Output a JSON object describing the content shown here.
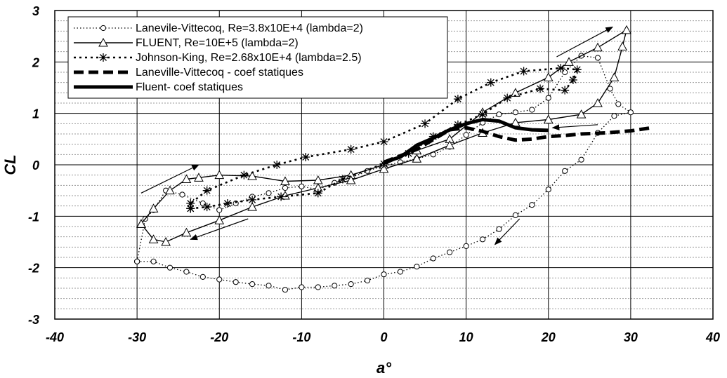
{
  "chart_data": {
    "type": "line",
    "xlabel": "a°",
    "ylabel": "CL",
    "xlim": [
      -40,
      40
    ],
    "ylim": [
      -3,
      3
    ],
    "x_ticks": [
      "-40",
      "-30",
      "-20",
      "-10",
      "0",
      "10",
      "20",
      "30",
      "40"
    ],
    "y_ticks": [
      "3",
      "2",
      "1",
      "0",
      "-1",
      "-2",
      "-3"
    ],
    "grid": "major and minor horizontal, major vertical",
    "legend_position": "top-left",
    "series": [
      {
        "name": "Lanevile-Vittecoq, Re=3.8x10E+4 (lambda=2)",
        "style": "dotted line, circle markers",
        "points": [
          [
            -30,
            -1.88
          ],
          [
            -29,
            -1.05
          ],
          [
            -28,
            -0.88
          ],
          [
            -26.5,
            -0.5
          ],
          [
            -24.5,
            -0.58
          ],
          [
            -22,
            -0.75
          ],
          [
            -20,
            -0.88
          ],
          [
            -18,
            -0.75
          ],
          [
            -16,
            -0.62
          ],
          [
            -14,
            -0.55
          ],
          [
            -12,
            -0.45
          ],
          [
            -10,
            -0.42
          ],
          [
            -8,
            -0.48
          ],
          [
            -6,
            -0.35
          ],
          [
            -4,
            -0.25
          ],
          [
            -2,
            -0.12
          ],
          [
            0,
            -0.02
          ],
          [
            2,
            0.05
          ],
          [
            4,
            0.12
          ],
          [
            6,
            0.2
          ],
          [
            8,
            0.35
          ],
          [
            10,
            0.58
          ],
          [
            12,
            0.82
          ],
          [
            14,
            0.98
          ],
          [
            16,
            1.02
          ],
          [
            18,
            1.07
          ],
          [
            20,
            1.3
          ],
          [
            22,
            1.8
          ],
          [
            24,
            2.12
          ],
          [
            26,
            2.08
          ],
          [
            27.5,
            1.48
          ],
          [
            28.5,
            1.18
          ],
          [
            30,
            1.02
          ],
          [
            28,
            0.95
          ],
          [
            26,
            0.62
          ],
          [
            24,
            0.1
          ],
          [
            22,
            -0.12
          ],
          [
            20,
            -0.48
          ],
          [
            18,
            -0.78
          ],
          [
            16,
            -0.98
          ],
          [
            14,
            -1.25
          ],
          [
            12,
            -1.45
          ],
          [
            10,
            -1.58
          ],
          [
            8,
            -1.7
          ],
          [
            6,
            -1.82
          ],
          [
            4,
            -1.98
          ],
          [
            2,
            -2.08
          ],
          [
            0,
            -2.13
          ],
          [
            -2,
            -2.25
          ],
          [
            -4,
            -2.32
          ],
          [
            -6,
            -2.35
          ],
          [
            -8,
            -2.38
          ],
          [
            -10,
            -2.38
          ],
          [
            -12,
            -2.43
          ],
          [
            -14,
            -2.35
          ],
          [
            -16,
            -2.32
          ],
          [
            -18,
            -2.28
          ],
          [
            -20,
            -2.23
          ],
          [
            -22,
            -2.18
          ],
          [
            -24,
            -2.08
          ],
          [
            -26,
            -2.0
          ],
          [
            -28,
            -1.88
          ],
          [
            -30,
            -1.88
          ]
        ]
      },
      {
        "name": "FLUENT, Re=10E+5 (lambda=2)",
        "style": "thin solid line, triangle markers",
        "points": [
          [
            -29.5,
            -1.15
          ],
          [
            -28,
            -0.85
          ],
          [
            -26,
            -0.5
          ],
          [
            -24,
            -0.28
          ],
          [
            -22.5,
            -0.25
          ],
          [
            -20,
            -0.2
          ],
          [
            -16,
            -0.22
          ],
          [
            -12,
            -0.32
          ],
          [
            -8,
            -0.3
          ],
          [
            -4,
            -0.2
          ],
          [
            0,
            0.0
          ],
          [
            4,
            0.28
          ],
          [
            8,
            0.5
          ],
          [
            12,
            1.02
          ],
          [
            16,
            1.4
          ],
          [
            20,
            1.7
          ],
          [
            22.5,
            2.0
          ],
          [
            26,
            2.28
          ],
          [
            29.5,
            2.62
          ],
          [
            29,
            2.3
          ],
          [
            28,
            1.7
          ],
          [
            26,
            1.2
          ],
          [
            24,
            0.98
          ],
          [
            20,
            0.88
          ],
          [
            16,
            0.82
          ],
          [
            12,
            0.62
          ],
          [
            8,
            0.38
          ],
          [
            4,
            0.12
          ],
          [
            0,
            -0.08
          ],
          [
            -4,
            -0.3
          ],
          [
            -8,
            -0.45
          ],
          [
            -12,
            -0.6
          ],
          [
            -16,
            -0.82
          ],
          [
            -20,
            -1.08
          ],
          [
            -24,
            -1.32
          ],
          [
            -26.5,
            -1.5
          ],
          [
            -28,
            -1.45
          ],
          [
            -29.5,
            -1.15
          ]
        ]
      },
      {
        "name": "Johnson-King, Re=2.68x10E+4 (lambda=2.5)",
        "style": "dotted thick line, asterisk markers",
        "points": [
          [
            -23.5,
            -0.85
          ],
          [
            -21.5,
            -0.82
          ],
          [
            -19,
            -0.75
          ],
          [
            -16,
            -0.68
          ],
          [
            -12.5,
            -0.62
          ],
          [
            -8,
            -0.55
          ],
          [
            -5,
            -0.28
          ],
          [
            0,
            0.02
          ],
          [
            3,
            0.22
          ],
          [
            6,
            0.55
          ],
          [
            9,
            0.78
          ],
          [
            12,
            0.98
          ],
          [
            15,
            1.3
          ],
          [
            19,
            1.48
          ],
          [
            22,
            1.45
          ],
          [
            23,
            1.65
          ],
          [
            23.5,
            1.85
          ],
          [
            21.5,
            1.88
          ],
          [
            17,
            1.82
          ],
          [
            13,
            1.6
          ],
          [
            9,
            1.28
          ],
          [
            5,
            0.8
          ],
          [
            0,
            0.45
          ],
          [
            -4,
            0.3
          ],
          [
            -9.5,
            0.15
          ],
          [
            -13,
            0.0
          ],
          [
            -17,
            -0.2
          ],
          [
            -21.5,
            -0.5
          ],
          [
            -23.5,
            -0.75
          ],
          [
            -23.5,
            -0.85
          ]
        ]
      },
      {
        "name": "Laneville-Vittecoq - coef statiques",
        "style": "thick dashed line",
        "points": [
          [
            0,
            0.05
          ],
          [
            4,
            0.3
          ],
          [
            8,
            0.68
          ],
          [
            10,
            0.72
          ],
          [
            12,
            0.65
          ],
          [
            14,
            0.55
          ],
          [
            16,
            0.48
          ],
          [
            18,
            0.5
          ],
          [
            20,
            0.55
          ],
          [
            22,
            0.57
          ],
          [
            24,
            0.6
          ],
          [
            27,
            0.62
          ],
          [
            30,
            0.66
          ],
          [
            32.5,
            0.72
          ]
        ]
      },
      {
        "name": "Fluent- coef statiques",
        "style": "thick solid line",
        "points": [
          [
            0,
            0.05
          ],
          [
            2,
            0.15
          ],
          [
            4,
            0.38
          ],
          [
            6,
            0.52
          ],
          [
            8,
            0.68
          ],
          [
            10,
            0.8
          ],
          [
            12,
            0.88
          ],
          [
            14,
            0.85
          ],
          [
            16,
            0.72
          ],
          [
            18,
            0.68
          ],
          [
            20,
            0.67
          ]
        ]
      }
    ],
    "annotations": [
      "arrows indicating direction of hysteresis loops"
    ]
  }
}
